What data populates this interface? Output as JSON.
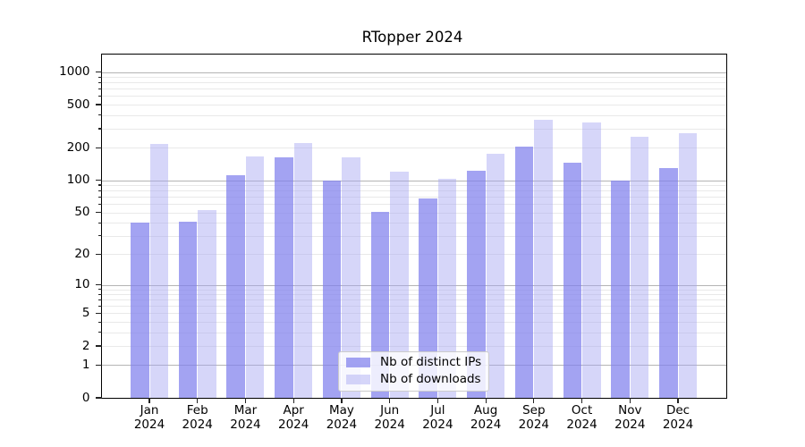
{
  "chart_data": {
    "type": "bar",
    "title": "RTopper 2024",
    "categories": [
      "Jan 2024",
      "Feb 2024",
      "Mar 2024",
      "Apr 2024",
      "May 2024",
      "Jun 2024",
      "Jul 2024",
      "Aug 2024",
      "Sep 2024",
      "Oct 2024",
      "Nov 2024",
      "Dec 2024"
    ],
    "months": [
      "Jan",
      "Feb",
      "Mar",
      "Apr",
      "May",
      "Jun",
      "Jul",
      "Aug",
      "Sep",
      "Oct",
      "Nov",
      "Dec"
    ],
    "year": "2024",
    "series": [
      {
        "name": "Nb of distinct IPs",
        "color": "rgba(128,128,237,0.72)",
        "values": [
          40,
          41,
          111,
          162,
          100,
          51,
          68,
          123,
          203,
          146,
          100,
          130
        ]
      },
      {
        "name": "Nb of downloads",
        "color": "rgba(164,164,242,0.45)",
        "values": [
          218,
          53,
          166,
          221,
          163,
          120,
          103,
          175,
          365,
          342,
          254,
          272
        ]
      }
    ],
    "y_scale": "log(1+x)",
    "ylim": [
      0,
      1450
    ],
    "y_tick_labels": [
      "1000",
      "500",
      "200",
      "100",
      "50",
      "20",
      "10",
      "5",
      "2",
      "1",
      "0"
    ],
    "y_major_gridlines": [
      1,
      10,
      100,
      1000
    ],
    "y_minor_gridlines": [
      2,
      3,
      4,
      5,
      6,
      7,
      8,
      9,
      20,
      30,
      40,
      50,
      60,
      70,
      80,
      90,
      200,
      300,
      400,
      500,
      600,
      700,
      800,
      900
    ],
    "legend_position": "lower center",
    "grid": true,
    "colors": {
      "major_grid": "#b4b4b4",
      "minor_grid": "#e9e9e9",
      "spine": "#000000",
      "text": "#000000"
    }
  }
}
